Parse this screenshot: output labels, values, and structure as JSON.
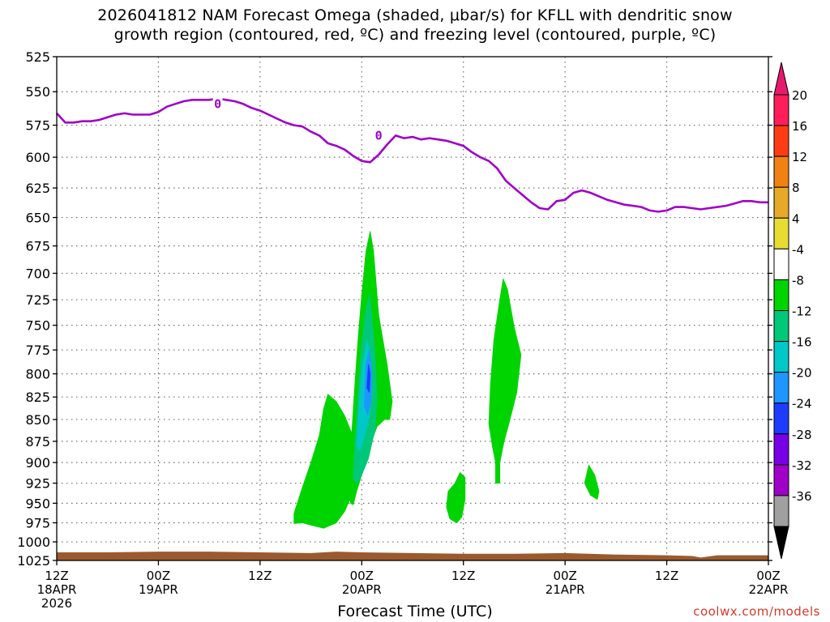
{
  "title_line1": "2026041812 NAM Forecast Omega (shaded, μbar/s) for KFLL with dendritic snow",
  "title_line2": "growth region (contoured, red, ºC) and freezing level (contoured, purple, ºC)",
  "x_axis_title": "Forecast Time (UTC)",
  "credit": "coolwx.com/models",
  "chart_data": {
    "type": "contour",
    "y_axis": {
      "scale": "pressure",
      "unit": "hPa",
      "range": [
        525,
        1025
      ],
      "ticks": [
        525,
        550,
        575,
        600,
        625,
        650,
        675,
        700,
        725,
        750,
        775,
        800,
        825,
        850,
        875,
        900,
        925,
        950,
        975,
        1000,
        1025
      ]
    },
    "x_axis": {
      "range_hours": [
        0,
        84
      ],
      "ticks": [
        {
          "hour": 0,
          "line1": "12Z",
          "line2": "18APR",
          "line3": "2026"
        },
        {
          "hour": 12,
          "line1": "00Z",
          "line2": "19APR",
          "line3": ""
        },
        {
          "hour": 24,
          "line1": "12Z",
          "line2": "",
          "line3": ""
        },
        {
          "hour": 36,
          "line1": "00Z",
          "line2": "20APR",
          "line3": ""
        },
        {
          "hour": 48,
          "line1": "12Z",
          "line2": "",
          "line3": ""
        },
        {
          "hour": 60,
          "line1": "00Z",
          "line2": "21APR",
          "line3": ""
        },
        {
          "hour": 72,
          "line1": "12Z",
          "line2": "",
          "line3": ""
        },
        {
          "hour": 84,
          "line1": "00Z",
          "line2": "22APR",
          "line3": ""
        }
      ]
    },
    "grid": true,
    "freezing_level": {
      "color": "#a000c8",
      "label": "0",
      "label_points": [
        [
          19,
          559
        ],
        [
          38,
          583
        ]
      ],
      "points": [
        [
          0,
          566
        ],
        [
          1,
          573
        ],
        [
          2,
          573
        ],
        [
          3,
          572
        ],
        [
          4,
          572
        ],
        [
          5,
          571
        ],
        [
          6,
          569
        ],
        [
          7,
          567
        ],
        [
          8,
          566
        ],
        [
          9,
          567
        ],
        [
          10,
          567
        ],
        [
          11,
          567
        ],
        [
          12,
          565
        ],
        [
          13,
          561
        ],
        [
          14,
          559
        ],
        [
          15,
          557
        ],
        [
          16,
          556
        ],
        [
          17,
          556
        ],
        [
          18,
          556
        ],
        [
          19,
          555
        ],
        [
          20,
          556
        ],
        [
          21,
          557
        ],
        [
          22,
          559
        ],
        [
          23,
          562
        ],
        [
          24,
          564
        ],
        [
          25,
          567
        ],
        [
          26,
          570
        ],
        [
          27,
          573
        ],
        [
          28,
          575
        ],
        [
          29,
          576
        ],
        [
          30,
          580
        ],
        [
          31,
          583
        ],
        [
          32,
          589
        ],
        [
          33,
          591
        ],
        [
          34,
          594
        ],
        [
          35,
          599
        ],
        [
          36,
          603
        ],
        [
          37,
          604
        ],
        [
          38,
          598
        ],
        [
          39,
          590
        ],
        [
          40,
          583
        ],
        [
          41,
          585
        ],
        [
          42,
          584
        ],
        [
          43,
          586
        ],
        [
          44,
          585
        ],
        [
          45,
          586
        ],
        [
          46,
          587
        ],
        [
          47,
          589
        ],
        [
          48,
          591
        ],
        [
          49,
          596
        ],
        [
          50,
          600
        ],
        [
          51,
          603
        ],
        [
          52,
          609
        ],
        [
          53,
          619
        ],
        [
          54,
          625
        ],
        [
          55,
          631
        ],
        [
          56,
          637
        ],
        [
          57,
          642
        ],
        [
          58,
          643
        ],
        [
          59,
          636
        ],
        [
          60,
          635
        ],
        [
          61,
          629
        ],
        [
          62,
          627
        ],
        [
          63,
          629
        ],
        [
          64,
          632
        ],
        [
          65,
          635
        ],
        [
          66,
          637
        ],
        [
          67,
          639
        ],
        [
          68,
          640
        ],
        [
          69,
          641
        ],
        [
          70,
          644
        ],
        [
          71,
          645
        ],
        [
          72,
          644
        ],
        [
          73,
          641
        ],
        [
          74,
          641
        ],
        [
          75,
          642
        ],
        [
          76,
          643
        ],
        [
          77,
          642
        ],
        [
          78,
          641
        ],
        [
          79,
          640
        ],
        [
          80,
          638
        ],
        [
          81,
          636
        ],
        [
          82,
          636
        ],
        [
          83,
          637
        ],
        [
          84,
          637
        ]
      ]
    },
    "omega_regions": [
      {
        "level": -4,
        "color": "#00d400",
        "polygon": [
          [
            28,
            963
          ],
          [
            29,
            930
          ],
          [
            30,
            900
          ],
          [
            31,
            868
          ],
          [
            31.5,
            838
          ],
          [
            32,
            822
          ],
          [
            33,
            830
          ],
          [
            34,
            846
          ],
          [
            35,
            870
          ],
          [
            35.6,
            900
          ],
          [
            35,
            935
          ],
          [
            34,
            960
          ],
          [
            33,
            975
          ],
          [
            31.5,
            982
          ],
          [
            30,
            978
          ],
          [
            29,
            975
          ],
          [
            28,
            976
          ]
        ]
      },
      {
        "level": -4,
        "color": "#00d400",
        "polygon": [
          [
            34,
            930
          ],
          [
            34.4,
            900
          ],
          [
            34.8,
            870
          ],
          [
            35.2,
            810
          ],
          [
            35.6,
            760
          ],
          [
            36,
            720
          ],
          [
            36.5,
            680
          ],
          [
            37,
            662
          ],
          [
            37.4,
            680
          ],
          [
            38,
            740
          ],
          [
            39,
            790
          ],
          [
            39.6,
            830
          ],
          [
            39.3,
            850
          ],
          [
            38.7,
            850
          ],
          [
            37.8,
            858
          ],
          [
            37,
            880
          ],
          [
            36.3,
            905
          ],
          [
            35.4,
            935
          ],
          [
            35,
            952
          ],
          [
            34.7,
            950
          ],
          [
            34.2,
            930
          ]
        ]
      },
      {
        "level": -8,
        "color": "#00c87a",
        "polygon": [
          [
            35,
            920
          ],
          [
            35.2,
            880
          ],
          [
            35.6,
            820
          ],
          [
            36,
            770
          ],
          [
            36.4,
            740
          ],
          [
            36.9,
            720
          ],
          [
            37.4,
            760
          ],
          [
            37.8,
            820
          ],
          [
            37.6,
            860
          ],
          [
            36.8,
            895
          ],
          [
            36,
            915
          ],
          [
            35.5,
            925
          ]
        ]
      },
      {
        "level": -12,
        "color": "#00c8c8",
        "polygon": [
          [
            35.4,
            880
          ],
          [
            35.8,
            820
          ],
          [
            36.2,
            785
          ],
          [
            36.6,
            765
          ],
          [
            37,
            780
          ],
          [
            37.2,
            815
          ],
          [
            36.9,
            845
          ],
          [
            36.3,
            870
          ],
          [
            35.8,
            885
          ]
        ]
      },
      {
        "level": -16,
        "color": "#1e96ff",
        "polygon": [
          [
            36.3,
            835
          ],
          [
            36.5,
            790
          ],
          [
            36.9,
            775
          ],
          [
            37.2,
            800
          ],
          [
            37.1,
            830
          ],
          [
            36.7,
            845
          ]
        ]
      },
      {
        "level": -20,
        "color": "#1e3cff",
        "polygon": [
          [
            36.6,
            815
          ],
          [
            36.8,
            790
          ],
          [
            37,
            800
          ],
          [
            36.9,
            820
          ]
        ]
      },
      {
        "level": -4,
        "color": "#00d400",
        "polygon": [
          [
            46,
            955
          ],
          [
            46.2,
            935
          ],
          [
            47,
            925
          ],
          [
            47.6,
            912
          ],
          [
            48.2,
            918
          ],
          [
            48.2,
            945
          ],
          [
            47.8,
            968
          ],
          [
            47.2,
            975
          ],
          [
            46.4,
            970
          ]
        ]
      },
      {
        "level": -4,
        "color": "#00d400",
        "polygon": [
          [
            51,
            855
          ],
          [
            51.2,
            810
          ],
          [
            51.6,
            765
          ],
          [
            52.2,
            730
          ],
          [
            52.7,
            705
          ],
          [
            53.2,
            715
          ],
          [
            54,
            752
          ],
          [
            54.8,
            780
          ],
          [
            54.3,
            820
          ],
          [
            53.5,
            850
          ],
          [
            52.8,
            875
          ],
          [
            52.3,
            900
          ],
          [
            52.3,
            925
          ],
          [
            51.8,
            925
          ],
          [
            51.8,
            900
          ],
          [
            51.4,
            880
          ]
        ]
      },
      {
        "level": -4,
        "color": "#00d400",
        "polygon": [
          [
            62.3,
            925
          ],
          [
            62.8,
            903
          ],
          [
            63.5,
            915
          ],
          [
            64,
            935
          ],
          [
            63.8,
            945
          ],
          [
            63,
            940
          ]
        ]
      }
    ],
    "terrain": {
      "color": "#9b5a2d",
      "points": [
        [
          0,
          1014
        ],
        [
          6,
          1014
        ],
        [
          12,
          1013
        ],
        [
          18,
          1013
        ],
        [
          24,
          1014
        ],
        [
          30,
          1015
        ],
        [
          33,
          1013
        ],
        [
          36,
          1014
        ],
        [
          42,
          1015
        ],
        [
          48,
          1016
        ],
        [
          54,
          1016
        ],
        [
          60,
          1015
        ],
        [
          66,
          1017
        ],
        [
          72,
          1018
        ],
        [
          75,
          1019
        ],
        [
          76,
          1021
        ],
        [
          78,
          1018
        ],
        [
          84,
          1018
        ]
      ]
    },
    "colorbar": {
      "labels": [
        20,
        16,
        12,
        8,
        4,
        -4,
        -8,
        -12,
        -16,
        -20,
        -24,
        -28,
        -32,
        -36
      ],
      "colors": [
        "#ff1e5a",
        "#ff3c14",
        "#f08214",
        "#e6aa28",
        "#e6dc32",
        "#ffffff",
        "#00d400",
        "#00c87a",
        "#00c8c8",
        "#1e96ff",
        "#1e3cff",
        "#7800e6",
        "#a000c8",
        "#a0a0a0"
      ],
      "top_arrow_color": "#e6196e",
      "bottom_arrow_color": "#000000"
    }
  }
}
